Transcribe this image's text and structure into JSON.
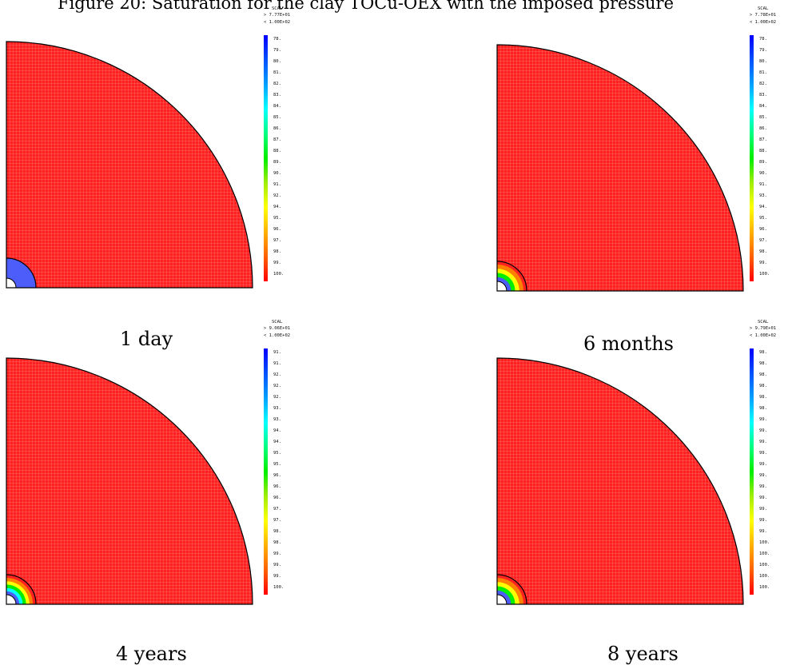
{
  "caption": "Figure 20: Saturation for the clay TOCu-OEX with the imposed pressure",
  "colors": {
    "background": "#ff2020",
    "ramp": [
      "#0000ff",
      "#0050ff",
      "#00a0ff",
      "#00ffff",
      "#00ff80",
      "#00ee00",
      "#a0ee00",
      "#ffff00",
      "#ffb000",
      "#ff6000",
      "#ff0000"
    ]
  },
  "panels": [
    {
      "id": "1-day",
      "time_label": "1 day",
      "scal": "SCAL",
      "max_label": "> 7.77E+01",
      "min_label": "< 1.00E+02",
      "ticks": [
        "78.",
        "79.",
        "80.",
        "81.",
        "82.",
        "83.",
        "84.",
        "85.",
        "86.",
        "87.",
        "88.",
        "89.",
        "90.",
        "91.",
        "92.",
        "94.",
        "95.",
        "96.",
        "97.",
        "98.",
        "99.",
        "100."
      ],
      "inner_zone_color": "#4d5dfa",
      "saturation_bands": [
        0.2
      ]
    },
    {
      "id": "6-months",
      "time_label": "6 months",
      "scal": "SCAL",
      "max_label": "> 7.78E+01",
      "min_label": "< 1.00E+02",
      "ticks": [
        "78.",
        "79.",
        "80.",
        "81.",
        "82.",
        "83.",
        "84.",
        "85.",
        "86.",
        "87.",
        "88.",
        "89.",
        "90.",
        "91.",
        "93.",
        "94.",
        "95.",
        "96.",
        "97.",
        "98.",
        "99.",
        "100."
      ],
      "inner_zone_color": "#4d5dfa",
      "saturation_bands": [
        0.2,
        0.6,
        0.9
      ]
    },
    {
      "id": "4-years",
      "time_label": "4 years",
      "scal": "SCAL",
      "max_label": "> 9.06E+01",
      "min_label": "< 1.00E+02",
      "ticks": [
        "91.",
        "91.",
        "92.",
        "92.",
        "92.",
        "93.",
        "93.",
        "94.",
        "94.",
        "95.",
        "95.",
        "96.",
        "96.",
        "96.",
        "97.",
        "97.",
        "98.",
        "98.",
        "99.",
        "99.",
        "99.",
        "100."
      ],
      "inner_zone_color": "#4d5dfa",
      "saturation_bands": [
        0.1,
        0.35,
        0.6,
        0.85
      ]
    },
    {
      "id": "8-years",
      "time_label": "8 years",
      "scal": "SCAL",
      "max_label": "> 9.79E+01",
      "min_label": "< 1.00E+02",
      "ticks": [
        "98.",
        "98.",
        "98.",
        "98.",
        "98.",
        "98.",
        "99.",
        "99.",
        "99.",
        "99.",
        "99.",
        "99.",
        "99.",
        "99.",
        "99.",
        "99.",
        "99.",
        "100.",
        "100.",
        "100.",
        "100.",
        "100."
      ],
      "inner_zone_color": "#4d5dfa",
      "saturation_bands": [
        0.1,
        0.3,
        0.5
      ]
    }
  ]
}
